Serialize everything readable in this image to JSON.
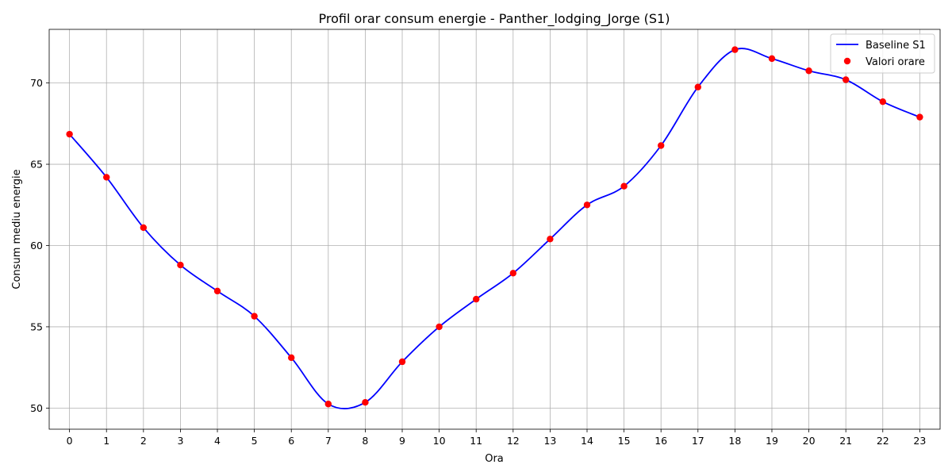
{
  "chart_data": {
    "type": "line",
    "title": "Profil orar consum energie - Panther_lodging_Jorge (S1)",
    "xlabel": "Ora",
    "ylabel": "Consum mediu energie",
    "x": [
      0,
      1,
      2,
      3,
      4,
      5,
      6,
      7,
      8,
      9,
      10,
      11,
      12,
      13,
      14,
      15,
      16,
      17,
      18,
      19,
      20,
      21,
      22,
      23
    ],
    "x_tick_labels": [
      "0",
      "1",
      "2",
      "3",
      "4",
      "5",
      "6",
      "7",
      "8",
      "9",
      "10",
      "11",
      "12",
      "13",
      "14",
      "15",
      "16",
      "17",
      "18",
      "19",
      "20",
      "21",
      "22",
      "23"
    ],
    "y_ticks": [
      50,
      55,
      60,
      65,
      70
    ],
    "y_tick_labels": [
      "50",
      "55",
      "60",
      "65",
      "70"
    ],
    "xlim": [
      -0.55,
      23.55
    ],
    "ylim": [
      48.7,
      73.3
    ],
    "grid": true,
    "legend_position": "top-right",
    "series": [
      {
        "name": "Baseline S1",
        "kind": "line",
        "color": "#0000ff",
        "values": [
          66.85,
          64.2,
          61.1,
          58.8,
          57.2,
          55.65,
          53.1,
          50.25,
          50.35,
          52.85,
          55.0,
          56.7,
          58.3,
          60.4,
          62.5,
          63.65,
          66.15,
          69.75,
          72.05,
          71.5,
          70.75,
          70.2,
          68.85,
          67.9
        ]
      },
      {
        "name": "Valori orare",
        "kind": "scatter",
        "color": "#ff0000",
        "values": [
          66.85,
          64.2,
          61.1,
          58.8,
          57.2,
          55.65,
          53.1,
          50.25,
          50.35,
          52.85,
          55.0,
          56.7,
          58.3,
          60.4,
          62.5,
          63.65,
          66.15,
          69.75,
          72.05,
          71.5,
          70.75,
          70.2,
          68.85,
          67.9
        ]
      }
    ]
  }
}
